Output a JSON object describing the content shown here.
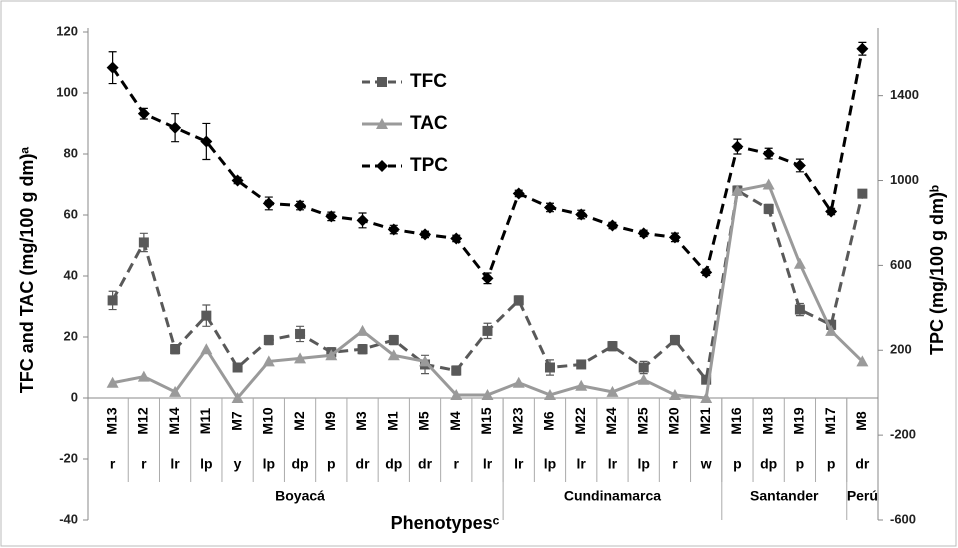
{
  "chart_data": {
    "type": "line",
    "y_label": "TFC and TAC (mg/100 g dm)ᵃ",
    "y2_label": "TPC (mg/100 g dm)ᵇ",
    "x_label": "Phenotypesᶜ",
    "categories": [
      "M13",
      "M12",
      "M14",
      "M11",
      "M7",
      "M10",
      "M2",
      "M9",
      "M3",
      "M1",
      "M5",
      "M4",
      "M15",
      "M23",
      "M6",
      "M22",
      "M24",
      "M25",
      "M20",
      "M21",
      "M16",
      "M18",
      "M19",
      "M17",
      "M8"
    ],
    "phenotypes": [
      "r",
      "r",
      "lr",
      "lp",
      "y",
      "lp",
      "dp",
      "p",
      "dr",
      "dp",
      "dr",
      "r",
      "lr",
      "lr",
      "lp",
      "lr",
      "lr",
      "lp",
      "r",
      "w",
      "p",
      "dp",
      "p",
      "p",
      "dr"
    ],
    "groups": [
      {
        "label": "Boyacá",
        "size": 13
      },
      {
        "label": "Cundinamarca",
        "size": 7
      },
      {
        "label": "Santander",
        "size": 4
      },
      {
        "label": "Perú",
        "size": 1
      }
    ],
    "ylim": [
      -40,
      120
    ],
    "yticks": [
      -40,
      -20,
      0,
      20,
      40,
      60,
      80,
      100,
      120
    ],
    "y2lim": [
      -600,
      1700
    ],
    "y2ticks": [
      -600,
      -200,
      200,
      600,
      1000,
      1400
    ],
    "series": [
      {
        "name": "TFC",
        "color": "#595959",
        "dash": true,
        "marker": "square",
        "values": [
          32,
          51,
          16,
          27,
          10,
          19,
          21,
          15,
          16,
          19,
          11,
          9,
          22,
          32,
          10,
          11,
          17,
          10,
          19,
          6,
          68,
          62,
          29,
          24,
          67
        ],
        "errors": [
          3,
          3,
          1.5,
          3.5,
          1,
          1.5,
          2.5,
          1.5,
          1.5,
          1.5,
          3,
          1.5,
          2.5,
          1.5,
          2.5,
          1,
          1.5,
          2,
          1.5,
          1,
          1.5,
          1.5,
          2,
          1.5,
          1
        ]
      },
      {
        "name": "TAC",
        "color": "#9a9a9a",
        "dash": false,
        "marker": "triangle",
        "values": [
          5,
          7,
          2,
          16,
          0,
          12,
          13,
          14,
          22,
          14,
          12,
          1,
          1,
          5,
          1,
          4,
          2,
          6,
          1,
          0,
          68,
          70,
          44,
          22,
          12
        ]
      },
      {
        "name": "TPC",
        "color": "#000000",
        "dash": true,
        "marker": "diamond",
        "axis": "y2",
        "values": [
          1532,
          1315,
          1249,
          1184,
          1000,
          892,
          882,
          831,
          812,
          769,
          746,
          727,
          539,
          939,
          873,
          840,
          788,
          751,
          732,
          567,
          1160,
          1127,
          1071,
          854,
          1621
        ],
        "errors": [
          75,
          25,
          66,
          85,
          15,
          30,
          20,
          20,
          35,
          20,
          15,
          15,
          25,
          15,
          20,
          20,
          15,
          15,
          20,
          15,
          35,
          25,
          30,
          15,
          30
        ]
      }
    ]
  }
}
